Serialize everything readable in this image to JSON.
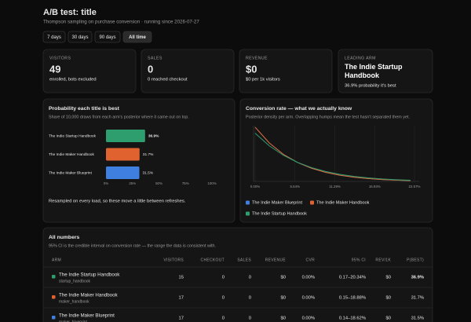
{
  "header": {
    "title": "A/B test: title",
    "subtitle": "Thompson sampling on purchase conversion · running since 2026-07-27"
  },
  "ranges": {
    "options": [
      "7 days",
      "30 days",
      "90 days",
      "All time"
    ],
    "active": 3
  },
  "stats": [
    {
      "label": "VISITORS",
      "value": "49",
      "note": "enrolled, bots excluded"
    },
    {
      "label": "SALES",
      "value": "0",
      "note": "0 reached checkout"
    },
    {
      "label": "REVENUE",
      "value": "$0",
      "note": "$0 per 1k visitors"
    },
    {
      "label": "LEADING ARM",
      "value": "The Indie Startup Handbook",
      "note": "36.9% probability it's best"
    }
  ],
  "chart_data": [
    {
      "type": "hbar",
      "title": "Probability each title is best",
      "subtitle": "Share of 10,000 draws from each arm's posterior where it came out on top.",
      "note": "Resampled on every load, so these move a little between refreshes.",
      "categories": [
        "The Indie Startup Handbook",
        "The Indie Maker Handbook",
        "The Indie Maker Blueprint"
      ],
      "values": [
        36.9,
        31.7,
        31.5
      ],
      "value_labels": [
        "36.9%",
        "31.7%",
        "31.5%"
      ],
      "colors": [
        "#2f9e6e",
        "#e0622e",
        "#3f7fe0"
      ],
      "xlim": [
        0,
        100
      ],
      "xticks": [
        {
          "value": 0,
          "label": "0%"
        },
        {
          "value": 25,
          "label": "25%"
        },
        {
          "value": 50,
          "label": "50%"
        },
        {
          "value": 75,
          "label": "75%"
        },
        {
          "value": 100,
          "label": "100%"
        }
      ]
    },
    {
      "type": "line",
      "title": "Conversion rate — what we actually know",
      "subtitle": "Posterior density per arm. Overlapping humps mean the test hasn't separated them yet.",
      "x": [
        0,
        2,
        4,
        6,
        8,
        10,
        12,
        14,
        16,
        18,
        20,
        22
      ],
      "series": [
        {
          "name": "The Indie Maker Blueprint",
          "color": "#3f7fe0",
          "values": [
            18,
            12.77,
            8.99,
            6.29,
            4.36,
            3.0,
            2.05,
            1.39,
            0.93,
            0.62,
            0.41,
            0.26
          ]
        },
        {
          "name": "The Indie Maker Handbook",
          "color": "#e0622e",
          "values": [
            18,
            12.77,
            8.99,
            6.29,
            4.36,
            3.0,
            2.05,
            1.39,
            0.93,
            0.62,
            0.41,
            0.26
          ]
        },
        {
          "name": "The Indie Startup Handbook",
          "color": "#2f9e6e",
          "values": [
            16,
            11.82,
            8.67,
            6.32,
            4.58,
            3.29,
            2.35,
            1.67,
            1.17,
            0.82,
            0.56,
            0.39
          ]
        }
      ],
      "xlim": [
        0,
        22.57
      ],
      "ylim": [
        0,
        18.5
      ],
      "xticks": [
        {
          "value": 0,
          "label": "0.00%"
        },
        {
          "value": 5.64,
          "label": "5.64%"
        },
        {
          "value": 11.29,
          "label": "11.29%"
        },
        {
          "value": 16.93,
          "label": "16.93%"
        },
        {
          "value": 22.57,
          "label": "22.57%"
        }
      ],
      "grid": true,
      "legend": "bottom"
    }
  ],
  "table": {
    "title": "All numbers",
    "subtitle": "95% CI is the credible interval on conversion rate — the range the data is consistent with.",
    "columns": [
      "ARM",
      "VISITORS",
      "CHECKOUT",
      "SALES",
      "REVENUE",
      "CVR",
      "95% CI",
      "REV/1K",
      "P(BEST)"
    ],
    "rows": [
      {
        "color": "#2f9e6e",
        "arm": "The Indie Startup Handbook",
        "slug": "startup_handbook",
        "cells": [
          "15",
          "0",
          "0",
          "$0",
          "0.00%",
          "0.17–20.34%",
          "$0",
          "36.9%"
        ]
      },
      {
        "color": "#e0622e",
        "arm": "The Indie Maker Handbook",
        "slug": "maker_handbook",
        "cells": [
          "17",
          "0",
          "0",
          "$0",
          "0.00%",
          "0.15–18.88%",
          "$0",
          "31.7%"
        ]
      },
      {
        "color": "#3f7fe0",
        "arm": "The Indie Maker Blueprint",
        "slug": "maker_blueprint",
        "cells": [
          "17",
          "0",
          "0",
          "$0",
          "0.00%",
          "0.14–18.62%",
          "$0",
          "31.5%"
        ]
      }
    ]
  }
}
